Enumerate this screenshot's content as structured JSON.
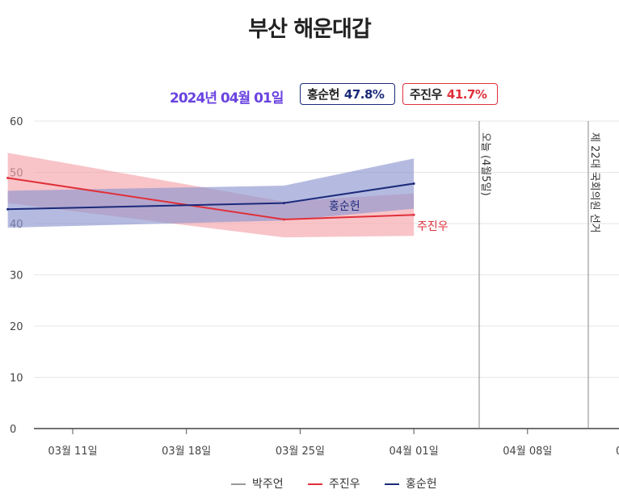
{
  "chart_data": {
    "type": "line",
    "title": "부산 해운대갑",
    "summary": {
      "date": "2024년 04월 01일",
      "badges": [
        {
          "name": "홍순헌",
          "value": "47.8%",
          "color": "#1b2a7a"
        },
        {
          "name": "주진우",
          "value": "41.7%",
          "color": "#e0303a"
        }
      ]
    },
    "x_tick_labels": [
      "03월 11일",
      "03월 18일",
      "03월 25일",
      "04월 01일",
      "04월 08일"
    ],
    "ylim": [
      0,
      60
    ],
    "y_ticks": [
      "0",
      "10",
      "20",
      "30",
      "40",
      "50",
      "60"
    ],
    "grid": true,
    "series": [
      {
        "name": "주진우",
        "color": "#e0303a",
        "band_color": "#f4a4ab",
        "points": [
          {
            "x": "2024-03-07",
            "y": 48.9,
            "low": 44.0,
            "high": 53.8
          },
          {
            "x": "2024-03-24",
            "y": 40.8,
            "low": 37.3,
            "high": 44.3
          },
          {
            "x": "2024-04-01",
            "y": 41.7,
            "low": 37.6,
            "high": 45.9
          }
        ]
      },
      {
        "name": "홍순헌",
        "color": "#1b2a7a",
        "band_color": "#8d97cf",
        "points": [
          {
            "x": "2024-03-07",
            "y": 42.8,
            "low": 39.2,
            "high": 46.4
          },
          {
            "x": "2024-03-24",
            "y": 44.0,
            "low": 40.6,
            "high": 47.4
          },
          {
            "x": "2024-04-01",
            "y": 47.8,
            "low": 42.9,
            "high": 52.7
          }
        ]
      }
    ],
    "line_end_labels": [
      {
        "series": "홍순헌",
        "text": "홍순헌"
      },
      {
        "series": "주진우",
        "text": "주진우"
      }
    ],
    "annotations": [
      {
        "x": "2024-04-05",
        "text": "오늘 (4월5일)"
      },
      {
        "x": "2024-04-10",
        "text": "제 22대 국회의원 선거"
      }
    ],
    "legend": {
      "position": "bottom",
      "items": [
        {
          "name": "박주언",
          "color": "#999999"
        },
        {
          "name": "주진우",
          "color": "#e0303a"
        },
        {
          "name": "홍순헌",
          "color": "#1b2a7a"
        }
      ]
    }
  }
}
